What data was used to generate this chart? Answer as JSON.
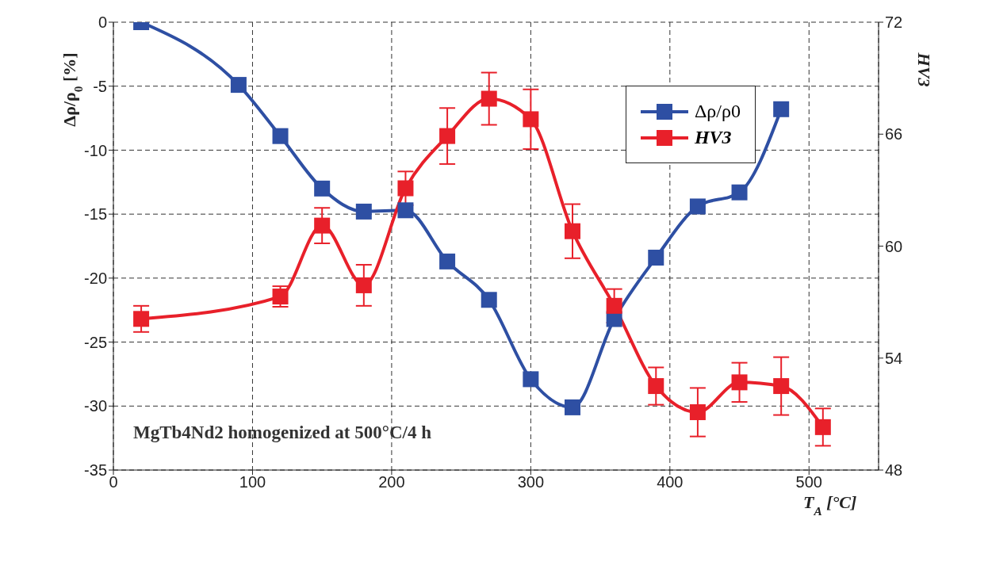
{
  "chart_data": {
    "type": "line",
    "xlabel": "T$_{A}$ [°C]",
    "ylabel": "Δρ/ρ$_{0}$ [%]",
    "y2label": "HV3",
    "annotations": [
      "MgTb4Nd2 homogenized at 500°C/4 h"
    ],
    "xlim": [
      0,
      550
    ],
    "xticks": [
      0,
      100,
      200,
      300,
      400,
      500
    ],
    "ylim": [
      -35,
      0
    ],
    "yticks": [
      -35,
      -30,
      -25,
      -20,
      -15,
      -10,
      -5,
      0
    ],
    "y2lim": [
      48,
      72
    ],
    "y2ticks": [
      48,
      54,
      60,
      66,
      72
    ],
    "grid": true,
    "legend": "top right",
    "marker": "square",
    "line_style": "solid",
    "series": [
      {
        "name": "Δρ/ρ0",
        "color": "#2e4fa3",
        "x": [
          20,
          90,
          120,
          150,
          180,
          210,
          240,
          270,
          300,
          330,
          360,
          390,
          420,
          450,
          480
        ],
        "values": [
          0,
          -4.9,
          -8.9,
          -13.0,
          -14.8,
          -14.7,
          -18.7,
          -21.7,
          -27.9,
          -30.1,
          -23.2,
          -18.4,
          -14.4,
          -13.3,
          -6.8
        ]
      },
      {
        "name": "HV3",
        "color": "#e8202a",
        "axis": "y2",
        "x": [
          20,
          120,
          150,
          180,
          210,
          240,
          270,
          300,
          330,
          360,
          390,
          420,
          450,
          480,
          510
        ],
        "values": [
          56.1,
          57.3,
          61.1,
          57.9,
          63.1,
          65.9,
          67.9,
          66.8,
          60.8,
          56.8,
          52.5,
          51.1,
          52.7,
          52.5,
          50.3
        ],
        "errors": [
          0.7,
          0.55,
          0.95,
          1.1,
          0.9,
          1.5,
          1.4,
          1.6,
          1.45,
          0.9,
          1.0,
          1.3,
          1.05,
          1.55,
          1.0
        ]
      }
    ]
  }
}
